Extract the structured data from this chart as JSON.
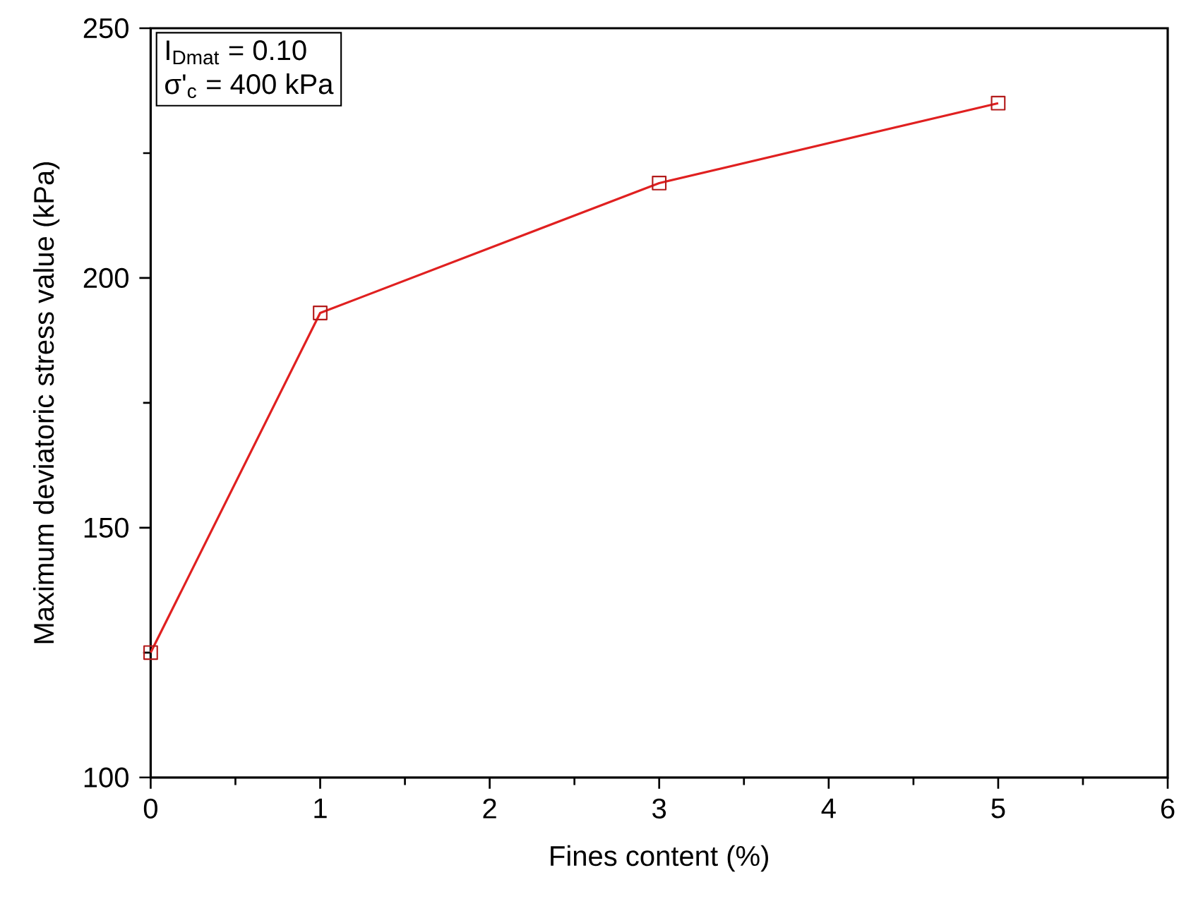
{
  "chart_data": {
    "type": "line",
    "x": [
      0,
      1,
      3,
      5
    ],
    "values": [
      125,
      193,
      219,
      235
    ],
    "color": "#e02020",
    "marker": "square",
    "xlabel": "Fines content (%)",
    "ylabel": "Maximum deviatoric stress value (kPa)",
    "xlim": [
      0,
      6
    ],
    "xticks": [
      0,
      1,
      2,
      3,
      4,
      5,
      6
    ],
    "ylim": [
      100,
      250
    ],
    "yticks": [
      100,
      150,
      200,
      250
    ],
    "annotations": [
      "I$_{Dmat}$ = 0.10",
      "σ'$_{c}$ = 400 kPa"
    ]
  }
}
